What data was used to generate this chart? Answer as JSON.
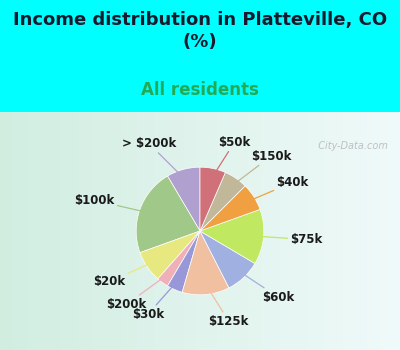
{
  "title": "Income distribution in Platteville, CO\n(%)",
  "subtitle": "All residents",
  "background_top": "#00FFFF",
  "background_chart_color": "#cce8dc",
  "labels": [
    "> $200k",
    "$100k",
    "$20k",
    "$200k",
    "$30k",
    "$125k",
    "$60k",
    "$75k",
    "$40k",
    "$150k",
    "$50k"
  ],
  "sizes": [
    8.5,
    22,
    8,
    3,
    4,
    12,
    9,
    14,
    7,
    6,
    6.5
  ],
  "colors": [
    "#b0a0d0",
    "#a0c888",
    "#e8e880",
    "#f0b0b8",
    "#9898d8",
    "#f0c0a0",
    "#a0b0e0",
    "#c0e860",
    "#f0a040",
    "#c0b898",
    "#d07078"
  ],
  "startangle": 90,
  "title_fontsize": 13,
  "subtitle_fontsize": 12,
  "label_fontsize": 8.5,
  "watermark": "  City-Data.com",
  "title_color": "#1a1a2e",
  "subtitle_color": "#22aa55"
}
